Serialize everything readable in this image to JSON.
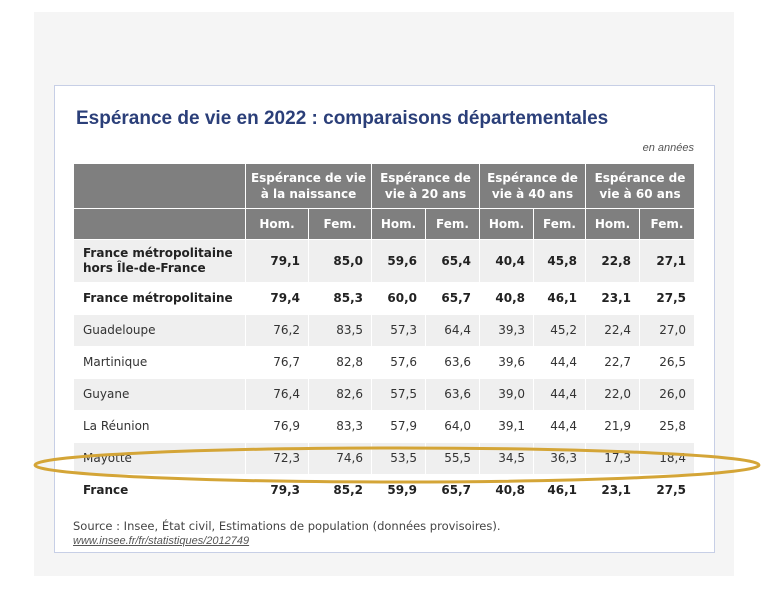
{
  "title": "Espérance de vie en 2022 : comparaisons départementales",
  "unit_note": "en années",
  "table": {
    "group_headers": [
      "",
      "Espérance de vie à la naissance",
      "Espérance de vie à 20 ans",
      "Espérance de vie à 40 ans",
      "Espérance de vie à 60 ans"
    ],
    "sub_headers": [
      "",
      "Hom.",
      "Fem.",
      "Hom.",
      "Fem.",
      "Hom.",
      "Fem.",
      "Hom.",
      "Fem."
    ],
    "rows": [
      {
        "label": "France métropolitaine hors Île-de-France",
        "values": [
          "79,1",
          "85,0",
          "59,6",
          "65,4",
          "40,4",
          "45,8",
          "22,8",
          "27,1"
        ]
      },
      {
        "label": "France métropolitaine",
        "values": [
          "79,4",
          "85,3",
          "60,0",
          "65,7",
          "40,8",
          "46,1",
          "23,1",
          "27,5"
        ]
      },
      {
        "label": "Guadeloupe",
        "values": [
          "76,2",
          "83,5",
          "57,3",
          "64,4",
          "39,3",
          "45,2",
          "22,4",
          "27,0"
        ]
      },
      {
        "label": "Martinique",
        "values": [
          "76,7",
          "82,8",
          "57,6",
          "63,6",
          "39,6",
          "44,4",
          "22,7",
          "26,5"
        ]
      },
      {
        "label": "Guyane",
        "values": [
          "76,4",
          "82,6",
          "57,5",
          "63,6",
          "39,0",
          "44,4",
          "22,0",
          "26,0"
        ]
      },
      {
        "label": "La Réunion",
        "values": [
          "76,9",
          "83,3",
          "57,9",
          "64,0",
          "39,1",
          "44,4",
          "21,9",
          "25,8"
        ]
      },
      {
        "label": "Mayotte",
        "values": [
          "72,3",
          "74,6",
          "53,5",
          "55,5",
          "34,5",
          "36,3",
          "17,3",
          "18,4"
        ]
      },
      {
        "label": "France",
        "values": [
          "79,3",
          "85,2",
          "59,9",
          "65,7",
          "40,8",
          "46,1",
          "23,1",
          "27,5"
        ]
      }
    ]
  },
  "source": "Source : Insee, État civil, Estimations de population (données provisoires).",
  "link": "www.insee.fr/fr/statistiques/2012749",
  "colors": {
    "title": "#2b3f79",
    "header_bg": "#7f7f7f",
    "highlight_ellipse": "#d4a537"
  }
}
